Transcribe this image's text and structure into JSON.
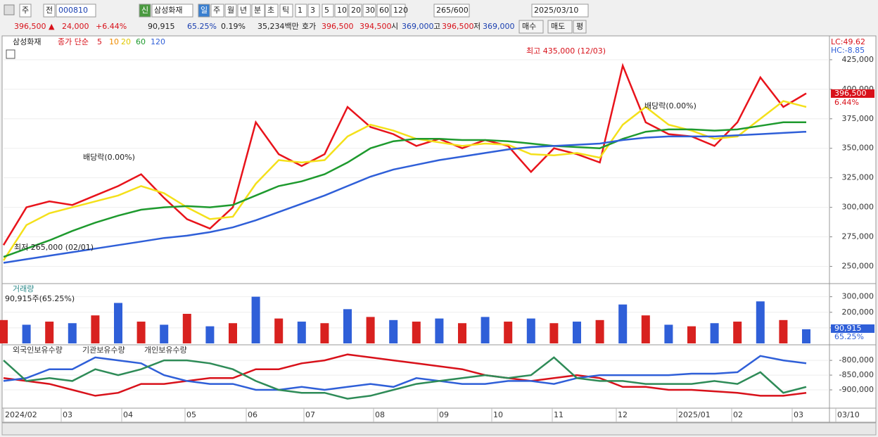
{
  "toolbar": {
    "row1": [
      "주",
      "전",
      "000810",
      "신",
      "삼성화재",
      "일",
      "주",
      "월",
      "년",
      "분",
      "초",
      "틱",
      "1",
      "3",
      "5",
      "10",
      "20",
      "30",
      "60",
      "120",
      "265/600",
      "2025/03/10"
    ],
    "row2": [
      "396,500 ▲",
      "24,000",
      "+6.44%",
      "90,915",
      "65.25%",
      "0.19%",
      "35,234백만",
      "호가",
      "396,500",
      "394,500",
      "시",
      "369,000",
      "고",
      "396,500",
      "저",
      "369,000",
      "매수",
      "매도",
      "평"
    ]
  },
  "chart_data": [
    {
      "type": "line",
      "legend": [
        "삼성화재",
        "종가 단순",
        "5",
        "10",
        "20",
        "60",
        "120"
      ],
      "indicators": [
        "LC:49.62",
        "HC:-8.85"
      ],
      "annotations": [
        "최고 435,000 (12/03)",
        "최저 265,000 (02/01)",
        "배당락(0.00%)",
        "배당락(0.00%)"
      ],
      "last_price": "396,500",
      "last_change": "6.44%",
      "ylim": [
        236000,
        444000
      ],
      "yticks": [
        {
          "value": 250000,
          "label": "250,000"
        },
        {
          "value": 275000,
          "label": "275,000"
        },
        {
          "value": 300000,
          "label": "300,000"
        },
        {
          "value": 325000,
          "label": "325,000"
        },
        {
          "value": 350000,
          "label": "350,000"
        },
        {
          "value": 375000,
          "label": "375,000"
        },
        {
          "value": 400000,
          "label": "400,000"
        },
        {
          "value": 425000,
          "label": "425,000"
        }
      ],
      "series": [
        {
          "name": "5",
          "color": "#e8131b",
          "values": [
            268000,
            300000,
            305000,
            302000,
            310000,
            318000,
            328000,
            308000,
            290000,
            282000,
            300000,
            372000,
            345000,
            335000,
            345000,
            385000,
            368000,
            362000,
            352000,
            358000,
            350000,
            357000,
            352000,
            330000,
            350000,
            345000,
            338000,
            420000,
            372000,
            362000,
            360000,
            352000,
            372000,
            410000,
            385000,
            396500
          ]
        },
        {
          "name": "20",
          "color": "#f4e01a",
          "values": [
            255000,
            285000,
            295000,
            300000,
            305000,
            310000,
            318000,
            312000,
            300000,
            290000,
            292000,
            320000,
            340000,
            338000,
            340000,
            360000,
            370000,
            365000,
            358000,
            355000,
            352000,
            354000,
            353000,
            345000,
            344000,
            346000,
            342000,
            370000,
            385000,
            370000,
            365000,
            358000,
            360000,
            375000,
            390000,
            385000
          ]
        },
        {
          "name": "60",
          "color": "#1e9a2e",
          "values": [
            258000,
            265000,
            272000,
            280000,
            287000,
            293000,
            298000,
            300000,
            301000,
            300000,
            302000,
            310000,
            318000,
            322000,
            328000,
            338000,
            350000,
            356000,
            358000,
            358000,
            357000,
            357000,
            356000,
            354000,
            352000,
            351000,
            350000,
            358000,
            364000,
            366000,
            366000,
            365000,
            366000,
            369000,
            372000,
            372000
          ]
        },
        {
          "name": "120",
          "color": "#2f5fd8",
          "values": [
            253000,
            256000,
            259000,
            262000,
            265000,
            268000,
            271000,
            274000,
            276000,
            279000,
            283000,
            289000,
            296000,
            303000,
            310000,
            318000,
            326000,
            332000,
            336000,
            340000,
            343000,
            346000,
            349000,
            351000,
            352000,
            353000,
            354000,
            357000,
            359000,
            360000,
            360000,
            360000,
            361000,
            362000,
            363000,
            364000
          ]
        }
      ]
    },
    {
      "type": "bar",
      "title": "거래량",
      "subtitle": "90,915주(65.25%)",
      "last_value": "90,915",
      "last_ratio": "65.25%",
      "ylim": [
        0,
        330000
      ],
      "yticks": [
        {
          "value": 100000,
          "label": "100,000"
        },
        {
          "value": 200000,
          "label": "200,000"
        },
        {
          "value": 300000,
          "label": "300,000"
        }
      ],
      "values": [
        150000,
        120000,
        140000,
        130000,
        180000,
        260000,
        140000,
        120000,
        190000,
        110000,
        130000,
        300000,
        160000,
        140000,
        130000,
        220000,
        170000,
        150000,
        140000,
        160000,
        130000,
        170000,
        140000,
        160000,
        130000,
        140000,
        150000,
        250000,
        180000,
        120000,
        110000,
        130000,
        140000,
        270000,
        150000,
        90915
      ],
      "colors": [
        "#d8211f",
        "#2f5fd8"
      ]
    },
    {
      "type": "line",
      "ylim": [
        -962000,
        -752000
      ],
      "yticks": [
        {
          "value": -800000,
          "label": "-800,000"
        },
        {
          "value": -850000,
          "label": "-850,000"
        },
        {
          "value": -900000,
          "label": "-900,000"
        }
      ],
      "series": [
        {
          "name": "외국인보유수량",
          "color": "#d8111a",
          "values": [
            -860000,
            -870000,
            -880000,
            -900000,
            -920000,
            -910000,
            -880000,
            -880000,
            -870000,
            -860000,
            -860000,
            -830000,
            -830000,
            -810000,
            -800000,
            -780000,
            -790000,
            -800000,
            -810000,
            -820000,
            -830000,
            -850000,
            -860000,
            -870000,
            -860000,
            -850000,
            -860000,
            -890000,
            -890000,
            -900000,
            -900000,
            -905000,
            -910000,
            -920000,
            -920000,
            -910000
          ]
        },
        {
          "name": "기관보유수량",
          "color": "#2f5fd8",
          "values": [
            -870000,
            -860000,
            -830000,
            -830000,
            -790000,
            -800000,
            -810000,
            -850000,
            -870000,
            -880000,
            -880000,
            -900000,
            -900000,
            -890000,
            -900000,
            -890000,
            -880000,
            -890000,
            -860000,
            -870000,
            -880000,
            -880000,
            -870000,
            -870000,
            -880000,
            -860000,
            -850000,
            -850000,
            -850000,
            -850000,
            -845000,
            -845000,
            -840000,
            -785000,
            -800000,
            -810000
          ]
        },
        {
          "name": "개인보유수량",
          "color": "#2e8b57",
          "values": [
            -800000,
            -870000,
            -860000,
            -870000,
            -830000,
            -850000,
            -830000,
            -800000,
            -800000,
            -810000,
            -830000,
            -870000,
            -900000,
            -910000,
            -910000,
            -930000,
            -920000,
            -900000,
            -880000,
            -870000,
            -860000,
            -850000,
            -860000,
            -850000,
            -790000,
            -860000,
            -870000,
            -870000,
            -880000,
            -880000,
            -880000,
            -870000,
            -880000,
            -840000,
            -910000,
            -890000
          ]
        }
      ]
    }
  ],
  "x_labels": [
    "2024/02",
    "03",
    "04",
    "05",
    "06",
    "07",
    "08",
    "09",
    "10",
    "11",
    "12",
    "2025/01",
    "02",
    "03",
    "03/10"
  ]
}
